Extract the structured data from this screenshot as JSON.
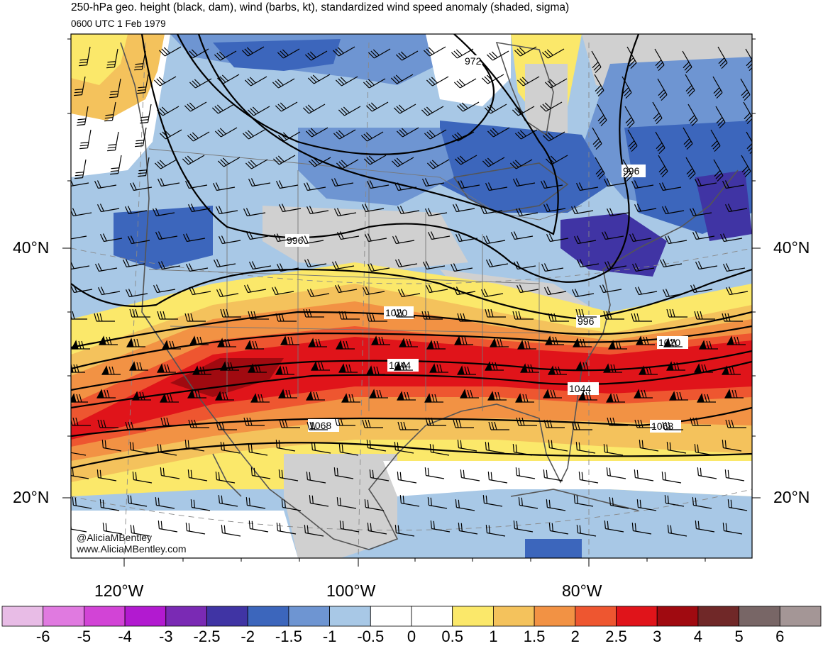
{
  "title": "250-hPa geo. height (black, dam), wind (barbs, kt), standardized wind speed anomaly (shaded, sigma)",
  "valid_time": "0600 UTC 1 Feb 1979",
  "latitude_labels": {
    "north_40": "40°N",
    "north_20": "20°N"
  },
  "longitude_labels": {
    "w120": "120°W",
    "w100": "100°W",
    "w80": "80°W"
  },
  "credits": {
    "handle": "@AliciaMBentley",
    "website": "www.AliciaMBentley.com"
  },
  "contour_labels": [
    "972",
    "996",
    "996",
    "996",
    "1020",
    "1020",
    "1044",
    "1044",
    "1068",
    "1068"
  ],
  "colorbar": {
    "colors": [
      "#e8bce6",
      "#e07ae0",
      "#d244d6",
      "#b21ad0",
      "#7a2ab4",
      "#4034a4",
      "#3c66bc",
      "#6e95d2",
      "#a8c8e6",
      "#ffffff",
      "#ffffff",
      "#fbe86a",
      "#f4c25c",
      "#f29244",
      "#ee5630",
      "#e0141a",
      "#a00a10",
      "#702828",
      "#786666",
      "#a49696"
    ],
    "labels": [
      "-6",
      "-5",
      "-4",
      "-3",
      "-2.5",
      "-2",
      "-1.5",
      "-1",
      "-0.5",
      "0",
      "0.5",
      "1",
      "1.5",
      "2",
      "2.5",
      "3",
      "4",
      "5",
      "6"
    ]
  }
}
